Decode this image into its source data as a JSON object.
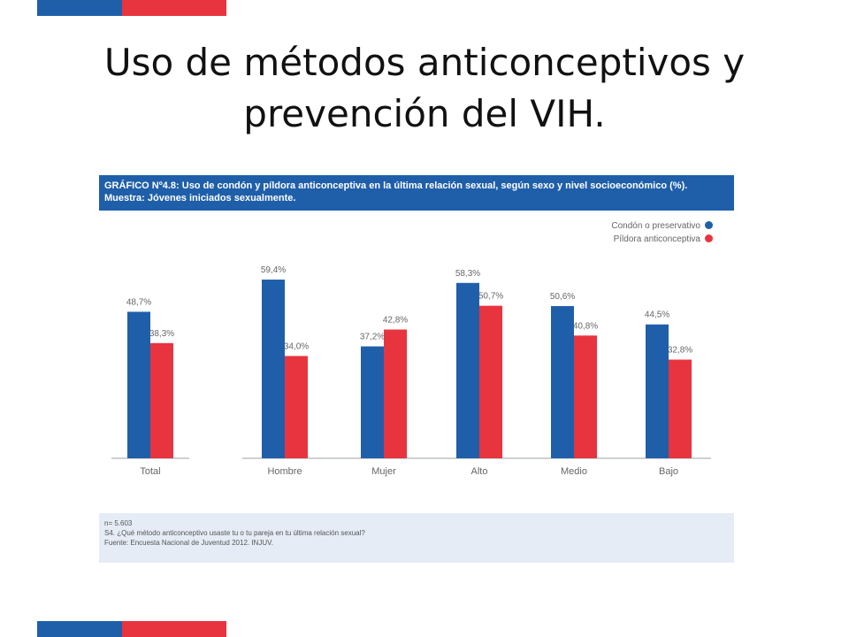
{
  "slide": {
    "title_line1": "Uso de métodos anticonceptivos y",
    "title_line2": "prevención del VIH.",
    "colors": {
      "stripe_blue": "#1f5faa",
      "stripe_red": "#e8343f"
    }
  },
  "figure": {
    "header_line1": "GRÁFICO Nº4.8: Uso de condón y píldora anticonceptiva en la última relación sexual, según sexo y nivel socioeconómico (%).",
    "header_line2": "Muestra: Jóvenes iniciados sexualmente.",
    "footer_n": "n= 5.603",
    "footer_question": "S4. ¿Qué método anticonceptivo usaste tu o tu pareja en tu última relación sexual?",
    "footer_source": "Fuente: Encuesta Nacional de Juventud 2012. INJUV."
  },
  "chart_data": {
    "type": "bar",
    "categories": [
      "Total",
      "Hombre",
      "Mujer",
      "Alto",
      "Medio",
      "Bajo"
    ],
    "series": [
      {
        "name": "Condón o preservativo",
        "color": "#1f5faa",
        "values": [
          48.7,
          59.4,
          37.2,
          58.3,
          50.6,
          44.5
        ],
        "labels": [
          "48,7%",
          "59,4%",
          "37,2%",
          "58,3%",
          "50,6%",
          "44,5%"
        ]
      },
      {
        "name": "Píldora anticonceptiva",
        "color": "#e8343f",
        "values": [
          38.3,
          34.0,
          42.8,
          50.7,
          40.8,
          32.8
        ],
        "labels": [
          "38,3%",
          "34,0%",
          "42,8%",
          "50,7%",
          "40,8%",
          "32,8%"
        ]
      }
    ],
    "ylim": [
      0,
      75
    ],
    "grid": false,
    "legend": "top-right"
  }
}
